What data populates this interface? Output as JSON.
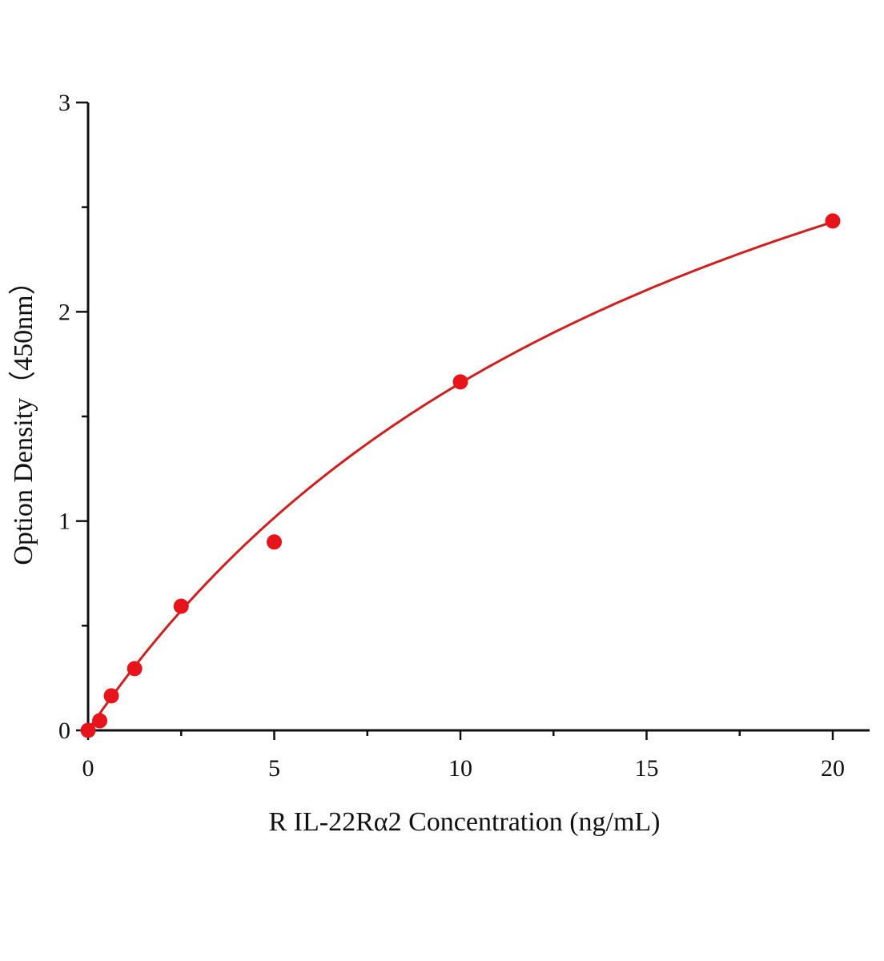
{
  "chart_data": {
    "type": "scatter",
    "title": "",
    "xlabel": "R IL-22Rα2 Concentration (ng/mL)",
    "ylabel": "Option Density（450nm）",
    "xlim": [
      0,
      21
    ],
    "ylim": [
      0,
      3
    ],
    "xticks": [
      "0",
      "5",
      "10",
      "15",
      "20"
    ],
    "yticks": [
      "0",
      "1",
      "2",
      "3"
    ],
    "grid": false,
    "legend": "none",
    "point_color": "#e8141b",
    "curve_color": "#d01f1f",
    "series": [
      {
        "x": [
          0,
          0.3125,
          0.625,
          1.25,
          2.5,
          5,
          10,
          20
        ],
        "y": [
          0,
          0.046,
          0.165,
          0.295,
          0.593,
          0.9,
          1.665,
          2.434
        ]
      }
    ]
  }
}
